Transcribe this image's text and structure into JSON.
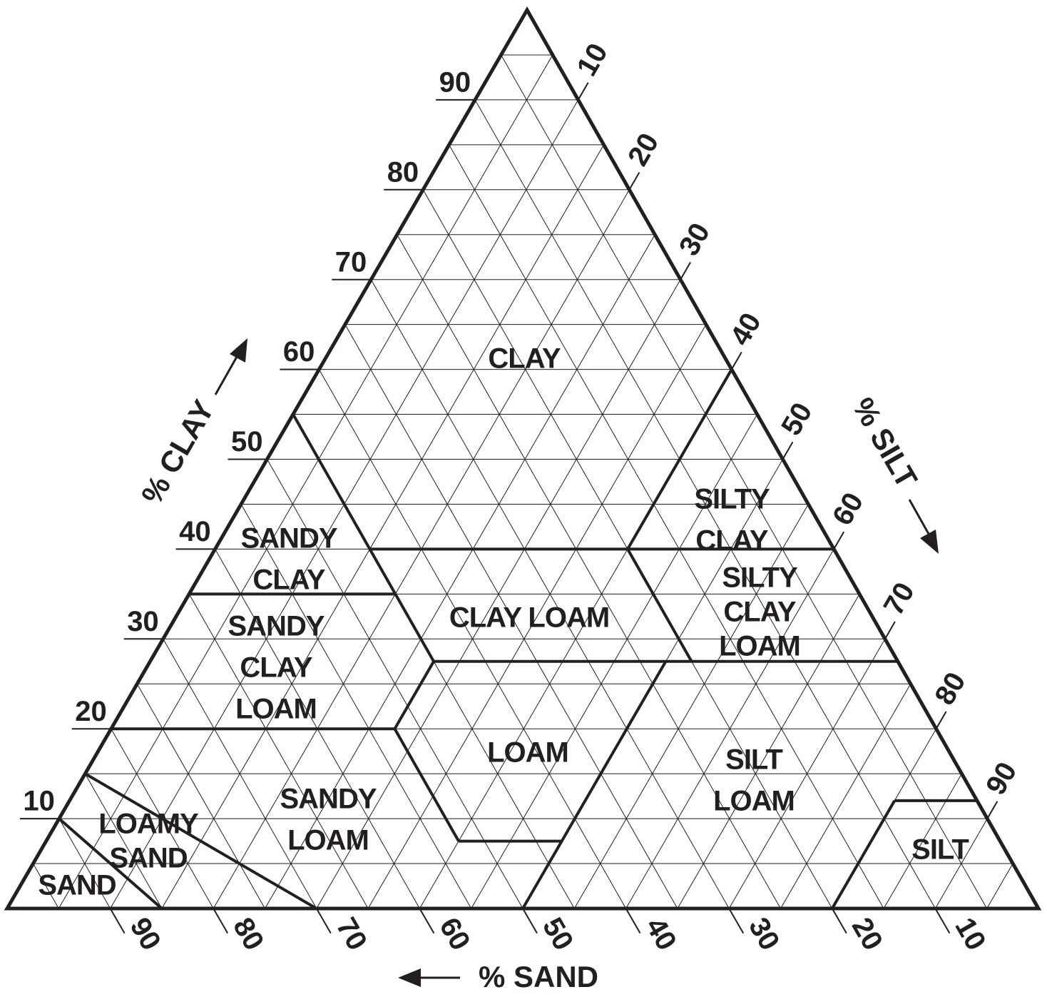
{
  "axes": {
    "clay": {
      "title": "% CLAY",
      "ticks": [
        10,
        20,
        30,
        40,
        50,
        60,
        70,
        80,
        90
      ]
    },
    "silt": {
      "title": "% SILT",
      "ticks": [
        10,
        20,
        30,
        40,
        50,
        60,
        70,
        80,
        90
      ]
    },
    "sand": {
      "title": "% SAND",
      "ticks": [
        10,
        20,
        30,
        40,
        50,
        60,
        70,
        80,
        90
      ]
    }
  },
  "regions": [
    {
      "lines": [
        "CLAY"
      ]
    },
    {
      "lines": [
        "SANDY",
        "CLAY"
      ]
    },
    {
      "lines": [
        "SANDY",
        "CLAY",
        "LOAM"
      ]
    },
    {
      "lines": [
        "CLAY LOAM"
      ]
    },
    {
      "lines": [
        "SILTY",
        "CLAY"
      ]
    },
    {
      "lines": [
        "SILTY",
        "CLAY",
        "LOAM"
      ]
    },
    {
      "lines": [
        "LOAM"
      ]
    },
    {
      "lines": [
        "SILT",
        "LOAM"
      ]
    },
    {
      "lines": [
        "SANDY",
        "LOAM"
      ]
    },
    {
      "lines": [
        "LOAMY",
        "SAND"
      ]
    },
    {
      "lines": [
        "SAND"
      ]
    },
    {
      "lines": [
        "SILT"
      ]
    }
  ]
}
